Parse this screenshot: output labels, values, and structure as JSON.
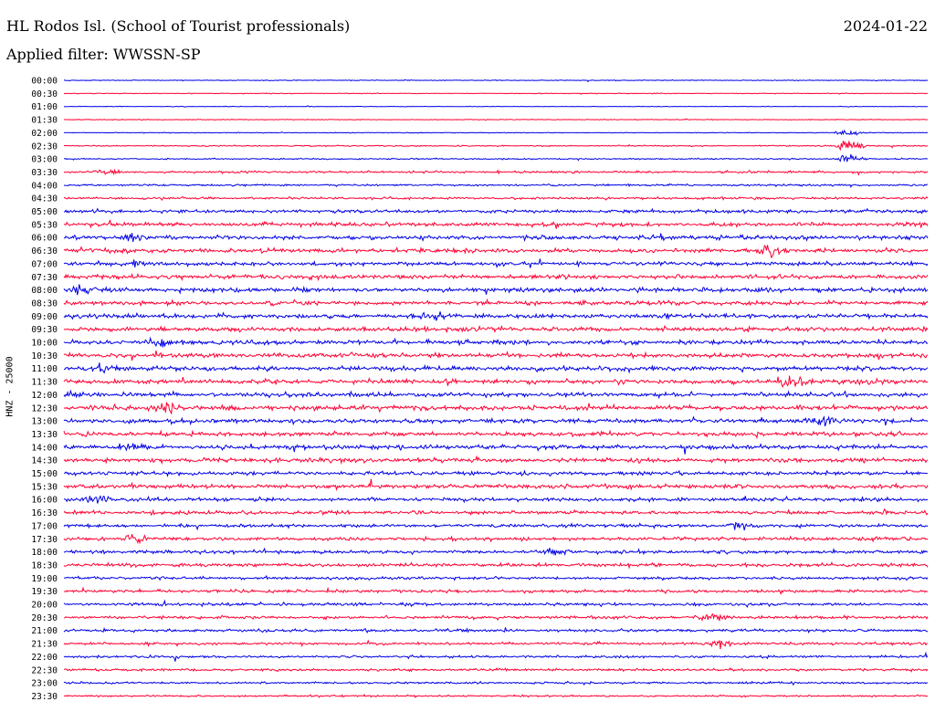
{
  "header": {
    "station_title": "HL Rodos Isl. (School of Tourist professionals)",
    "date": "2024-01-22",
    "filter": "Applied filter: WWSSN-SP"
  },
  "colors": {
    "trace_a": "#0000e6",
    "trace_b": "#ff0033"
  },
  "chart_data": {
    "type": "line",
    "title": "HL Rodos Isl. (School of Tourist professionals)",
    "ylabel": "HNZ - 25000",
    "xlabel": "",
    "row_labels": [
      "00:00",
      "00:30",
      "01:00",
      "01:30",
      "02:00",
      "02:30",
      "03:00",
      "03:30",
      "04:00",
      "04:30",
      "05:00",
      "05:30",
      "06:00",
      "06:30",
      "07:00",
      "07:30",
      "08:00",
      "08:30",
      "09:00",
      "09:30",
      "10:00",
      "10:30",
      "11:00",
      "11:30",
      "12:00",
      "12:30",
      "13:00",
      "13:30",
      "14:00",
      "14:30",
      "15:00",
      "15:30",
      "16:00",
      "16:30",
      "17:00",
      "17:30",
      "18:00",
      "18:30",
      "19:00",
      "19:30",
      "20:00",
      "20:30",
      "21:00",
      "21:30",
      "22:00",
      "22:30",
      "23:00",
      "23:30"
    ],
    "row_amplitude": [
      0.5,
      0.5,
      0.4,
      0.5,
      0.5,
      0.8,
      0.9,
      1.4,
      1.3,
      1.5,
      2.2,
      2.6,
      2.8,
      2.8,
      2.6,
      2.8,
      3.0,
      2.8,
      2.8,
      3.0,
      2.8,
      3.0,
      3.0,
      3.0,
      3.0,
      3.2,
      3.0,
      2.8,
      2.8,
      2.8,
      2.6,
      2.8,
      2.4,
      2.4,
      2.2,
      2.2,
      2.2,
      2.2,
      2.0,
      2.0,
      2.0,
      1.9,
      1.9,
      1.8,
      1.6,
      1.6,
      1.4,
      1.2
    ],
    "events": [
      {
        "row": 5,
        "x": 0.91,
        "amp": 10
      },
      {
        "row": 4,
        "x": 0.91,
        "amp": 6
      },
      {
        "row": 6,
        "x": 0.91,
        "amp": 8
      },
      {
        "row": 7,
        "x": 0.05,
        "amp": 5
      },
      {
        "row": 12,
        "x": 0.08,
        "amp": 6
      },
      {
        "row": 13,
        "x": 0.82,
        "amp": 9
      },
      {
        "row": 14,
        "x": 0.08,
        "amp": 5
      },
      {
        "row": 16,
        "x": 0.02,
        "amp": 6
      },
      {
        "row": 18,
        "x": 0.43,
        "amp": 7
      },
      {
        "row": 20,
        "x": 0.11,
        "amp": 8
      },
      {
        "row": 22,
        "x": 0.05,
        "amp": 7
      },
      {
        "row": 23,
        "x": 0.84,
        "amp": 8
      },
      {
        "row": 25,
        "x": 0.12,
        "amp": 7
      },
      {
        "row": 26,
        "x": 0.88,
        "amp": 7
      },
      {
        "row": 28,
        "x": 0.08,
        "amp": 6
      },
      {
        "row": 32,
        "x": 0.04,
        "amp": 5
      },
      {
        "row": 34,
        "x": 0.78,
        "amp": 6
      },
      {
        "row": 35,
        "x": 0.08,
        "amp": 6
      },
      {
        "row": 36,
        "x": 0.57,
        "amp": 6
      },
      {
        "row": 41,
        "x": 0.75,
        "amp": 7
      },
      {
        "row": 43,
        "x": 0.76,
        "amp": 7
      }
    ]
  }
}
